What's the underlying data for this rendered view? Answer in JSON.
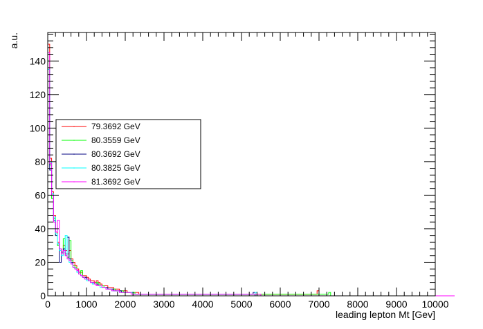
{
  "chart_data": {
    "type": "histogram",
    "title": "",
    "xlabel": "leading lepton Mt [Gev]",
    "ylabel": "a.u.",
    "xlim": [
      0,
      10000
    ],
    "ylim": [
      0,
      157
    ],
    "x_ticks": [
      0,
      1000,
      2000,
      3000,
      4000,
      5000,
      6000,
      7000,
      8000,
      9000,
      10000
    ],
    "y_ticks": [
      0,
      20,
      40,
      60,
      80,
      100,
      120,
      140
    ],
    "bin_width": 50,
    "grid": false,
    "legend_position": "left-middle",
    "series": [
      {
        "name": "79.3692 GeV",
        "color": "#ff0000",
        "values": [
          150,
          82,
          62,
          48,
          38,
          32,
          28,
          26,
          30,
          27,
          25,
          27,
          22,
          20,
          18,
          16,
          14,
          14,
          12,
          12,
          11,
          10,
          9,
          9,
          8,
          9,
          8,
          7,
          6,
          6,
          6,
          5,
          5,
          5,
          4,
          4,
          4,
          3,
          3,
          3,
          3,
          2,
          2,
          2,
          2,
          2,
          2,
          1,
          1,
          1,
          1,
          1,
          1,
          1,
          1,
          1,
          1,
          1,
          1,
          1,
          1,
          1,
          1,
          1,
          1,
          1,
          1,
          1,
          1,
          1,
          1,
          1,
          1,
          1,
          1,
          1,
          1,
          1,
          1,
          1,
          1,
          1,
          1,
          1,
          1,
          1,
          1,
          1,
          1,
          1,
          1,
          1,
          1,
          1,
          1,
          1,
          1,
          1,
          1,
          1,
          1,
          1,
          1,
          1,
          1,
          1,
          1,
          1,
          1,
          1,
          1,
          1,
          1,
          1,
          1,
          1,
          1,
          1,
          1,
          1,
          1,
          1,
          1,
          1,
          1,
          1,
          1,
          1,
          1,
          1,
          1,
          1,
          1,
          1,
          1,
          1,
          1,
          1,
          1,
          3,
          0,
          0,
          0,
          0,
          0,
          0,
          0,
          0,
          0,
          0,
          0,
          0,
          0,
          0,
          0,
          0,
          0,
          0,
          0,
          0,
          0,
          0,
          0,
          0,
          0,
          0,
          0,
          0,
          0,
          0,
          0,
          0,
          0,
          0,
          0,
          0,
          0,
          0,
          0,
          0,
          0,
          0,
          0,
          0,
          0,
          0,
          0,
          0,
          0,
          0,
          0,
          0,
          0,
          0,
          0,
          0,
          0,
          0,
          0,
          0
        ]
      },
      {
        "name": "80.3559 GeV",
        "color": "#00ff00",
        "values": [
          140,
          78,
          58,
          46,
          36,
          30,
          27,
          25,
          34,
          24,
          23,
          33,
          21,
          18,
          17,
          15,
          13,
          15,
          11,
          11,
          10,
          9,
          8,
          8,
          7,
          8,
          7,
          6,
          6,
          5,
          5,
          4,
          4,
          4,
          4,
          3,
          3,
          3,
          3,
          2,
          2,
          2,
          2,
          2,
          2,
          1,
          1,
          1,
          1,
          1,
          1,
          1,
          1,
          1,
          1,
          1,
          1,
          1,
          1,
          1,
          1,
          1,
          1,
          1,
          1,
          1,
          1,
          1,
          1,
          1,
          1,
          1,
          1,
          1,
          1,
          1,
          1,
          1,
          1,
          1,
          1,
          1,
          1,
          1,
          1,
          1,
          1,
          1,
          1,
          1,
          1,
          1,
          1,
          1,
          1,
          1,
          1,
          1,
          1,
          1,
          1,
          1,
          1,
          1,
          1,
          1,
          1,
          1,
          1,
          1,
          1,
          1,
          1,
          1,
          1,
          1,
          1,
          1,
          1,
          1,
          1,
          1,
          1,
          1,
          1,
          1,
          1,
          1,
          1,
          1,
          1,
          1,
          1,
          1,
          1,
          1,
          1,
          1,
          1,
          1,
          1,
          1,
          1,
          1,
          1,
          2,
          0,
          0,
          0,
          0,
          0,
          0,
          0,
          0,
          0,
          0,
          0,
          0,
          0,
          0,
          0,
          0,
          0,
          0,
          0,
          0,
          0,
          0,
          0,
          0,
          0,
          0,
          0,
          0,
          0,
          0,
          0,
          0,
          0,
          0,
          0,
          0,
          0,
          0,
          0,
          0,
          0,
          0,
          0,
          0,
          0,
          0,
          0,
          0,
          0,
          0,
          0,
          0,
          0,
          0,
          0,
          0,
          0,
          0,
          0,
          0
        ]
      },
      {
        "name": "80.3692 GeV",
        "color": "#000080",
        "values": [
          120,
          75,
          60,
          45,
          36,
          31,
          20,
          26,
          28,
          25,
          35,
          22,
          20,
          17,
          16,
          15,
          13,
          12,
          11,
          11,
          10,
          9,
          8,
          8,
          7,
          7,
          6,
          6,
          5,
          5,
          5,
          4,
          4,
          4,
          3,
          3,
          3,
          3,
          2,
          2,
          2,
          2,
          2,
          2,
          1,
          1,
          1,
          1,
          1,
          1,
          1,
          1,
          1,
          1,
          1,
          1,
          1,
          1,
          1,
          1,
          1,
          1,
          1,
          1,
          1,
          1,
          1,
          1,
          1,
          1,
          1,
          1,
          1,
          1,
          1,
          1,
          1,
          1,
          1,
          1,
          1,
          1,
          1,
          1,
          1,
          1,
          1,
          1,
          1,
          1,
          1,
          1,
          1,
          1,
          1,
          1,
          1,
          1,
          1,
          1,
          1,
          1,
          1,
          1,
          1,
          1,
          2,
          0,
          0,
          0,
          0,
          0,
          0,
          0,
          0,
          0,
          0,
          0,
          0,
          0,
          0,
          0,
          0,
          0,
          0,
          0,
          0,
          0,
          0,
          0,
          0,
          0,
          0,
          0,
          0,
          0,
          0,
          0,
          0,
          0,
          0,
          0,
          0,
          0,
          0,
          0,
          0,
          0,
          0,
          0,
          0,
          0,
          0,
          0,
          0,
          0,
          0,
          0,
          0,
          0,
          0,
          0,
          0,
          0,
          0,
          0,
          0,
          0,
          0,
          0,
          0,
          0,
          0,
          0,
          0,
          0,
          0,
          0,
          0,
          0,
          0,
          0,
          0,
          0,
          0,
          0,
          0,
          0,
          0,
          0,
          0,
          0,
          0,
          0,
          0,
          0,
          0,
          0,
          0,
          0,
          0,
          0,
          0,
          0,
          0,
          0
        ]
      },
      {
        "name": "80.3825 GeV",
        "color": "#00ffff",
        "values": [
          135,
          80,
          61,
          47,
          37,
          31,
          27,
          24,
          26,
          36,
          22,
          20,
          19,
          17,
          16,
          14,
          13,
          12,
          11,
          10,
          9,
          9,
          8,
          7,
          7,
          6,
          6,
          5,
          5,
          5,
          4,
          4,
          4,
          3,
          3,
          3,
          3,
          2,
          2,
          2,
          2,
          2,
          2,
          2,
          1,
          1,
          1,
          1,
          1,
          1,
          1,
          1,
          1,
          1,
          1,
          1,
          1,
          1,
          1,
          1,
          1,
          1,
          1,
          1,
          1,
          1,
          1,
          1,
          1,
          1,
          1,
          1,
          1,
          1,
          1,
          1,
          1,
          1,
          1,
          1,
          1,
          1,
          1,
          1,
          1,
          1,
          1,
          1,
          1,
          1,
          1,
          1,
          1,
          1,
          1,
          1,
          1,
          1,
          1,
          1,
          1,
          1,
          1,
          1,
          1,
          1,
          1,
          2,
          0,
          0,
          0,
          0,
          0,
          0,
          0,
          0,
          0,
          0,
          0,
          0,
          0,
          0,
          0,
          0,
          0,
          0,
          0,
          0,
          0,
          0,
          0,
          0,
          0,
          0,
          0,
          0,
          0,
          0,
          0,
          0,
          0,
          0,
          0,
          0,
          0,
          0,
          0,
          0,
          0,
          0,
          0,
          0,
          0,
          0,
          0,
          0,
          0,
          0,
          0,
          0,
          0,
          0,
          0,
          0,
          0,
          0,
          0,
          0,
          0,
          0,
          0,
          0,
          0,
          0,
          0,
          0,
          0,
          0,
          0,
          0,
          0,
          0,
          0,
          0,
          0,
          0,
          0,
          0,
          0,
          0,
          0,
          0,
          0,
          0,
          0,
          0,
          0,
          0,
          0,
          0,
          0,
          0,
          0,
          0,
          0,
          0,
          0
        ]
      },
      {
        "name": "81.3692 GeV",
        "color": "#ff00ff",
        "values": [
          145,
          79,
          60,
          44,
          38,
          45,
          28,
          25,
          27,
          24,
          22,
          21,
          19,
          17,
          16,
          15,
          13,
          12,
          11,
          10,
          10,
          9,
          8,
          8,
          7,
          6,
          6,
          6,
          5,
          5,
          4,
          4,
          4,
          3,
          3,
          3,
          3,
          2,
          2,
          2,
          2,
          2,
          2,
          1,
          1,
          1,
          1,
          1,
          1,
          1,
          1,
          1,
          1,
          1,
          1,
          1,
          1,
          1,
          1,
          1,
          1,
          1,
          1,
          1,
          1,
          1,
          1,
          1,
          1,
          1,
          1,
          1,
          1,
          1,
          1,
          1,
          1,
          1,
          1,
          1,
          1,
          1,
          1,
          1,
          1,
          1,
          1,
          1,
          1,
          1,
          1,
          1,
          1,
          1,
          1,
          1,
          1,
          1,
          1,
          1,
          1,
          1,
          1,
          1,
          1,
          1,
          1,
          1,
          1,
          1,
          0,
          0,
          0,
          0,
          0,
          0,
          0,
          0,
          0,
          0,
          0,
          0,
          0,
          0,
          0,
          0,
          0,
          0,
          0,
          0,
          0,
          0,
          0,
          0,
          0,
          0,
          0,
          0,
          0,
          0,
          0,
          0,
          0,
          0,
          0,
          0,
          0,
          0,
          0,
          0,
          0,
          0,
          0,
          0,
          0,
          0,
          0,
          0,
          0,
          0,
          0,
          0,
          0,
          0,
          0,
          0,
          0,
          0,
          0,
          0,
          0,
          0,
          0,
          0,
          0,
          0,
          0,
          0,
          0,
          0,
          0,
          0,
          0,
          0,
          0,
          0,
          0,
          0,
          0,
          0,
          0,
          0,
          0,
          0,
          0,
          0,
          0,
          0,
          0,
          0,
          0,
          0,
          0,
          0,
          0,
          0,
          0,
          0,
          0,
          0
        ]
      }
    ]
  }
}
